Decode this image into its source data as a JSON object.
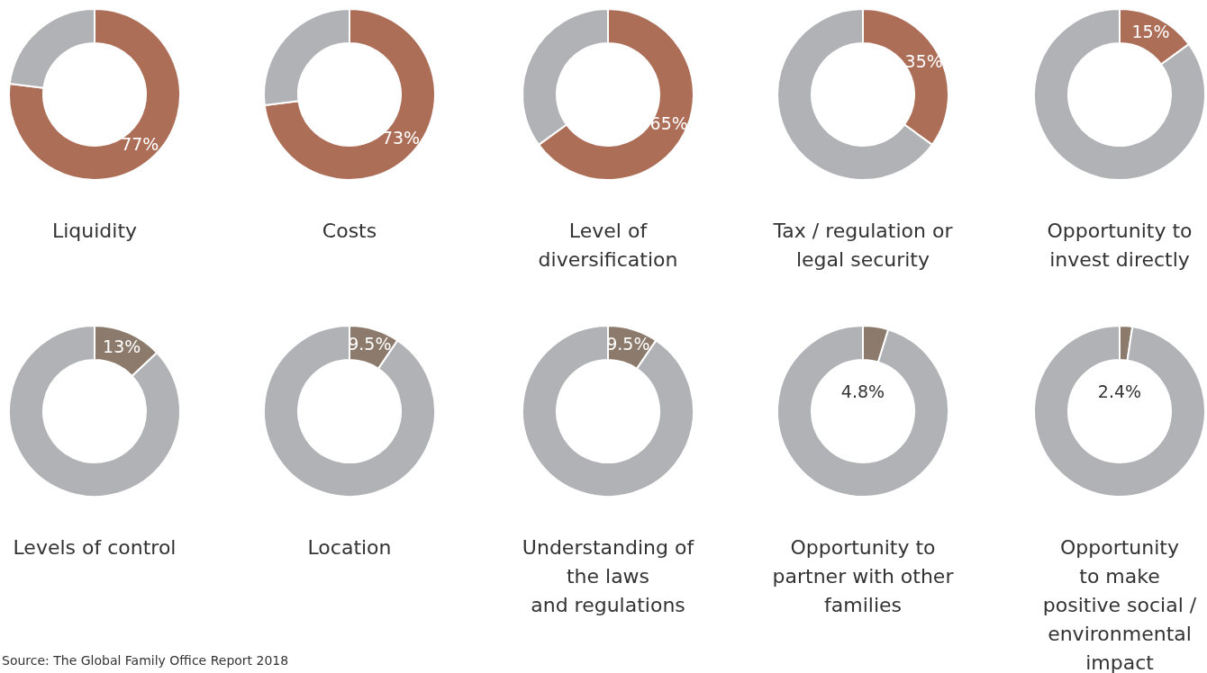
{
  "chart_data": [
    {
      "type": "donut",
      "title": "Liquidity",
      "categories": [
        null,
        null
      ],
      "values": [
        77,
        23
      ],
      "colors": [
        "#ad6e58",
        "#b1b2b5"
      ],
      "value_labels": [
        "77%",
        null
      ]
    },
    {
      "type": "donut",
      "title": "Costs",
      "categories": [
        null,
        null
      ],
      "values": [
        73,
        27
      ],
      "colors": [
        "#ad6e58",
        "#b1b2b5"
      ],
      "value_labels": [
        "73%",
        null
      ]
    },
    {
      "type": "donut",
      "title": "Level of\ndiversification",
      "categories": [
        null,
        null
      ],
      "values": [
        65,
        35
      ],
      "colors": [
        "#ad6e58",
        "#b1b2b5"
      ],
      "value_labels": [
        "65%",
        null
      ]
    },
    {
      "type": "donut",
      "title": "Tax / regulation or\nlegal security",
      "categories": [
        null,
        null
      ],
      "values": [
        35,
        65
      ],
      "colors": [
        "#ad6e58",
        "#b1b2b5"
      ],
      "value_labels": [
        "35%",
        null
      ]
    },
    {
      "type": "donut",
      "title": "Opportunity to\ninvest directly",
      "categories": [
        null,
        null
      ],
      "values": [
        15,
        85
      ],
      "colors": [
        "#ad6e58",
        "#b1b2b5"
      ],
      "value_labels": [
        "15%",
        null
      ]
    },
    {
      "type": "donut",
      "title": "Levels of control",
      "categories": [
        null,
        null
      ],
      "values": [
        13,
        87
      ],
      "colors": [
        "#8c7b6c",
        "#b1b2b5"
      ],
      "value_labels": [
        "13%",
        null
      ]
    },
    {
      "type": "donut",
      "title": "Location",
      "categories": [
        null,
        null
      ],
      "values": [
        9.5,
        90.5
      ],
      "colors": [
        "#8c7b6c",
        "#b1b2b5"
      ],
      "value_labels": [
        "9.5%",
        null
      ]
    },
    {
      "type": "donut",
      "title": "Understanding of\nthe laws\nand regulations",
      "categories": [
        null,
        null
      ],
      "values": [
        9.5,
        90.5
      ],
      "colors": [
        "#8c7b6c",
        "#b1b2b5"
      ],
      "value_labels": [
        "9.5%",
        null
      ]
    },
    {
      "type": "donut",
      "title": "Opportunity to\npartner with other\nfamilies",
      "categories": [
        null,
        null
      ],
      "values": [
        4.8,
        95.2
      ],
      "colors": [
        "#8c7b6c",
        "#b1b2b5"
      ],
      "value_labels": [
        "4.8%",
        null
      ]
    },
    {
      "type": "donut",
      "title": "Opportunity\nto make\npositive social /\nenvironmental\nimpact",
      "categories": [
        null,
        null
      ],
      "values": [
        2.4,
        97.6
      ],
      "colors": [
        "#8c7b6c",
        "#b1b2b5"
      ],
      "value_labels": [
        "2.4%",
        null
      ],
      "annotations": [
        "Source: The Global Family Office Report 2018"
      ]
    }
  ]
}
